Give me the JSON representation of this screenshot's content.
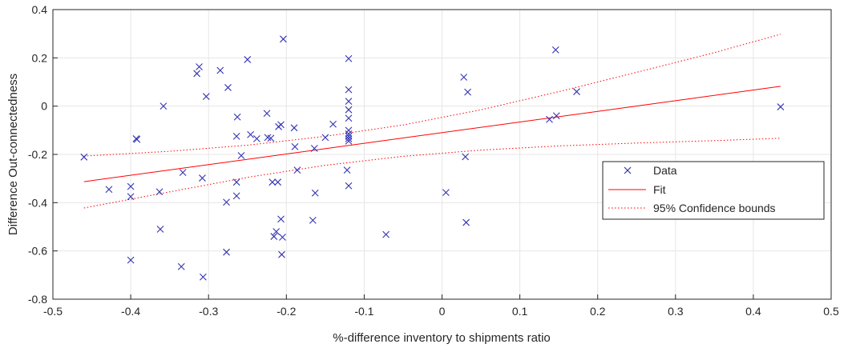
{
  "chart_data": {
    "type": "scatter",
    "xlabel": "%-difference inventory to shipments ratio",
    "ylabel": "Difference Out-connectedness",
    "xlim": [
      -0.5,
      0.5
    ],
    "ylim": [
      -0.8,
      0.4
    ],
    "x_ticks": [
      "-0.5",
      "-0.4",
      "-0.3",
      "-0.2",
      "-0.1",
      "0",
      "0.1",
      "0.2",
      "0.3",
      "0.4",
      "0.5"
    ],
    "y_ticks": [
      "-0.8",
      "-0.6",
      "-0.4",
      "-0.2",
      "0",
      "0.2",
      "0.4"
    ],
    "grid": true,
    "legend_position": "right",
    "series": [
      {
        "name": "Data",
        "marker": "x",
        "color": "#3333b3",
        "points": [
          [
            -0.46,
            -0.211
          ],
          [
            -0.428,
            -0.345
          ],
          [
            -0.4,
            -0.375
          ],
          [
            -0.4,
            -0.333
          ],
          [
            -0.4,
            -0.638
          ],
          [
            -0.393,
            -0.135
          ],
          [
            -0.392,
            -0.138
          ],
          [
            -0.363,
            -0.355
          ],
          [
            -0.362,
            -0.51
          ],
          [
            -0.358,
            0.0
          ],
          [
            -0.335,
            -0.665
          ],
          [
            -0.333,
            -0.275
          ],
          [
            -0.315,
            0.135
          ],
          [
            -0.312,
            0.163
          ],
          [
            -0.308,
            -0.298
          ],
          [
            -0.307,
            -0.708
          ],
          [
            -0.303,
            0.04
          ],
          [
            -0.285,
            0.148
          ],
          [
            -0.277,
            -0.398
          ],
          [
            -0.277,
            -0.605
          ],
          [
            -0.275,
            0.077
          ],
          [
            -0.264,
            -0.315
          ],
          [
            -0.264,
            -0.372
          ],
          [
            -0.264,
            -0.125
          ],
          [
            -0.263,
            -0.045
          ],
          [
            -0.258,
            -0.205
          ],
          [
            -0.25,
            0.193
          ],
          [
            -0.246,
            -0.118
          ],
          [
            -0.238,
            -0.135
          ],
          [
            -0.225,
            -0.03
          ],
          [
            -0.224,
            -0.13
          ],
          [
            -0.22,
            -0.133
          ],
          [
            -0.218,
            -0.315
          ],
          [
            -0.216,
            -0.54
          ],
          [
            -0.213,
            -0.52
          ],
          [
            -0.211,
            -0.315
          ],
          [
            -0.21,
            -0.085
          ],
          [
            -0.207,
            -0.077
          ],
          [
            -0.207,
            -0.468
          ],
          [
            -0.206,
            -0.615
          ],
          [
            -0.205,
            -0.543
          ],
          [
            -0.204,
            0.278
          ],
          [
            -0.19,
            -0.09
          ],
          [
            -0.189,
            -0.168
          ],
          [
            -0.186,
            -0.265
          ],
          [
            -0.166,
            -0.473
          ],
          [
            -0.164,
            -0.175
          ],
          [
            -0.163,
            -0.36
          ],
          [
            -0.15,
            -0.13
          ],
          [
            -0.14,
            -0.075
          ],
          [
            -0.122,
            -0.265
          ],
          [
            -0.12,
            0.197
          ],
          [
            -0.12,
            0.068
          ],
          [
            -0.12,
            0.02
          ],
          [
            -0.12,
            -0.015
          ],
          [
            -0.12,
            -0.05
          ],
          [
            -0.12,
            -0.1
          ],
          [
            -0.12,
            -0.115
          ],
          [
            -0.12,
            -0.125
          ],
          [
            -0.12,
            -0.135
          ],
          [
            -0.12,
            -0.145
          ],
          [
            -0.12,
            -0.33
          ],
          [
            -0.072,
            -0.532
          ],
          [
            0.005,
            -0.358
          ],
          [
            0.028,
            0.12
          ],
          [
            0.03,
            -0.21
          ],
          [
            0.031,
            -0.482
          ],
          [
            0.033,
            0.058
          ],
          [
            0.138,
            -0.055
          ],
          [
            0.146,
            0.233
          ],
          [
            0.147,
            -0.04
          ],
          [
            0.173,
            0.06
          ],
          [
            0.435,
            -0.003
          ]
        ]
      },
      {
        "name": "Fit",
        "line": "solid",
        "color": "#ff0000",
        "points": [
          [
            -0.46,
            -0.313
          ],
          [
            0.435,
            0.082
          ]
        ]
      },
      {
        "name": "95% Confidence bounds",
        "line": "dotted",
        "color": "#ff0000",
        "upper": [
          [
            -0.46,
            -0.207
          ],
          [
            -0.35,
            -0.187
          ],
          [
            -0.25,
            -0.162
          ],
          [
            -0.15,
            -0.125
          ],
          [
            -0.05,
            -0.078
          ],
          [
            0.05,
            -0.015
          ],
          [
            0.15,
            0.06
          ],
          [
            0.25,
            0.14
          ],
          [
            0.35,
            0.222
          ],
          [
            0.435,
            0.298
          ]
        ],
        "lower": [
          [
            -0.46,
            -0.422
          ],
          [
            -0.35,
            -0.355
          ],
          [
            -0.25,
            -0.295
          ],
          [
            -0.15,
            -0.245
          ],
          [
            -0.05,
            -0.208
          ],
          [
            0.05,
            -0.182
          ],
          [
            0.15,
            -0.165
          ],
          [
            0.25,
            -0.153
          ],
          [
            0.35,
            -0.143
          ],
          [
            0.435,
            -0.133
          ]
        ]
      }
    ]
  }
}
